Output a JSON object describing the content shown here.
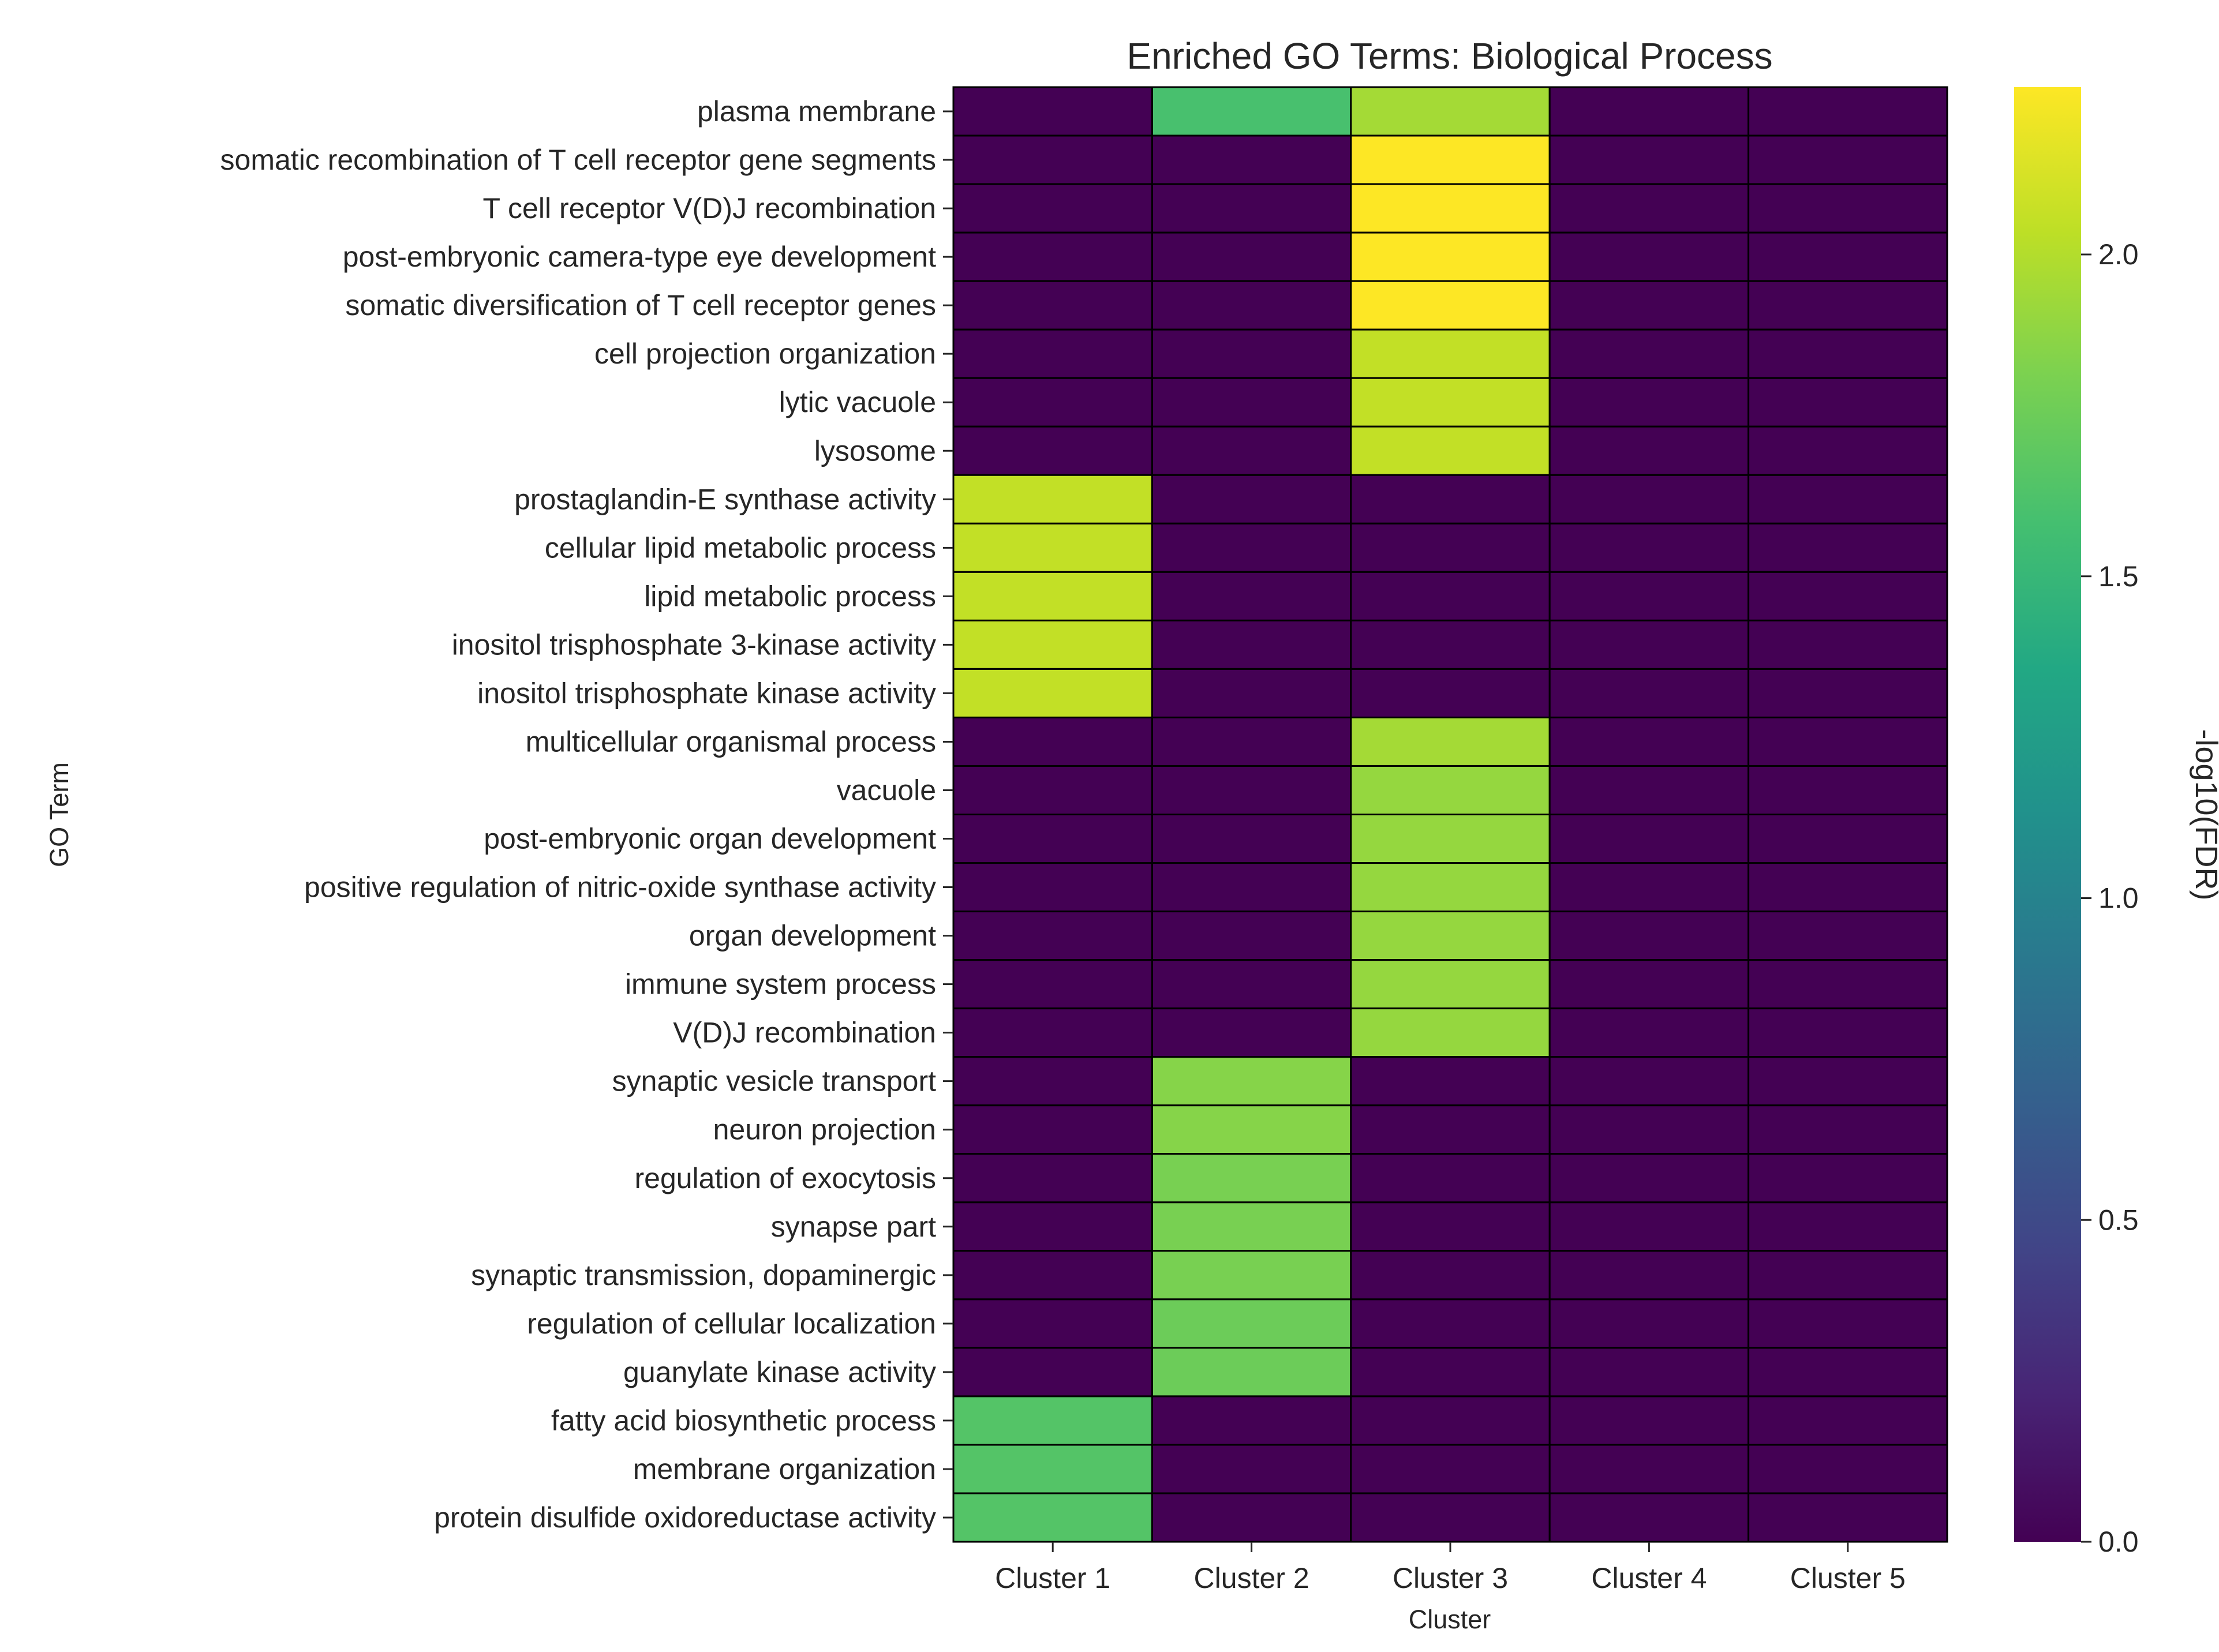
{
  "chart_data": {
    "type": "heatmap",
    "title": "Enriched GO Terms: Biological Process",
    "xlabel": "Cluster",
    "ylabel": "GO Term",
    "colorbar_label": "-log10(FDR)",
    "colormap": "viridis",
    "vmin": 0.0,
    "vmax": 2.26,
    "colorbar_ticks": [
      "0.0",
      "0.5",
      "1.0",
      "1.5",
      "2.0"
    ],
    "columns": [
      "Cluster 1",
      "Cluster 2",
      "Cluster 3",
      "Cluster 4",
      "Cluster 5"
    ],
    "rows": [
      "plasma membrane",
      "somatic recombination of T cell receptor gene segments",
      "T cell receptor V(D)J recombination",
      "post-embryonic camera-type eye development",
      "somatic diversification of T cell receptor genes",
      "cell projection organization",
      "lytic vacuole",
      "lysosome",
      "prostaglandin-E synthase activity",
      "cellular lipid metabolic process",
      "lipid metabolic process",
      "inositol trisphosphate 3-kinase activity",
      "inositol trisphosphate kinase activity",
      "multicellular organismal process",
      "vacuole",
      "post-embryonic organ development",
      "positive regulation of nitric-oxide synthase activity",
      "organ development",
      "immune system process",
      "V(D)J recombination",
      "synaptic vesicle transport",
      "neuron projection",
      "regulation of exocytosis",
      "synapse part",
      "synaptic transmission, dopaminergic",
      "regulation of cellular localization",
      "guanylate kinase activity",
      "fatty acid biosynthetic process",
      "membrane organization",
      "protein disulfide oxidoreductase activity"
    ],
    "values": [
      [
        0,
        1.6,
        1.95,
        0,
        0
      ],
      [
        0,
        0,
        2.26,
        0,
        0
      ],
      [
        0,
        0,
        2.26,
        0,
        0
      ],
      [
        0,
        0,
        2.26,
        0,
        0
      ],
      [
        0,
        0,
        2.26,
        0,
        0
      ],
      [
        0,
        0,
        2.05,
        0,
        0
      ],
      [
        0,
        0,
        2.05,
        0,
        0
      ],
      [
        0,
        0,
        2.05,
        0,
        0
      ],
      [
        2.05,
        0,
        0,
        0,
        0
      ],
      [
        2.05,
        0,
        0,
        0,
        0
      ],
      [
        2.05,
        0,
        0,
        0,
        0
      ],
      [
        2.05,
        0,
        0,
        0,
        0
      ],
      [
        2.05,
        0,
        0,
        0,
        0
      ],
      [
        0,
        0,
        1.95,
        0,
        0
      ],
      [
        0,
        0,
        1.9,
        0,
        0
      ],
      [
        0,
        0,
        1.9,
        0,
        0
      ],
      [
        0,
        0,
        1.9,
        0,
        0
      ],
      [
        0,
        0,
        1.9,
        0,
        0
      ],
      [
        0,
        0,
        1.9,
        0,
        0
      ],
      [
        0,
        0,
        1.9,
        0,
        0
      ],
      [
        0,
        1.85,
        0,
        0,
        0
      ],
      [
        0,
        1.85,
        0,
        0,
        0
      ],
      [
        0,
        1.8,
        0,
        0,
        0
      ],
      [
        0,
        1.8,
        0,
        0,
        0
      ],
      [
        0,
        1.8,
        0,
        0,
        0
      ],
      [
        0,
        1.75,
        0,
        0,
        0
      ],
      [
        0,
        1.75,
        0,
        0,
        0
      ],
      [
        1.65,
        0,
        0,
        0,
        0
      ],
      [
        1.65,
        0,
        0,
        0,
        0
      ],
      [
        1.65,
        0,
        0,
        0,
        0
      ]
    ]
  }
}
